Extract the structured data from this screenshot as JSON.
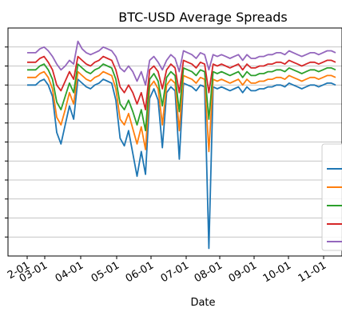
{
  "chart_data": {
    "type": "line",
    "title": "BTC-USD Average Spreads",
    "xlabel": "Date",
    "ylabel": "",
    "x_tick_labels": [
      "2-01",
      "03-01",
      "04-01",
      "05-01",
      "06-01",
      "07-01",
      "08-01",
      "09-01",
      "10-01",
      "11-01"
    ],
    "grid": "horizontal",
    "legend_location": "right",
    "series": [
      {
        "color": "#1f77b4",
        "baseline": 5.0,
        "values": [
          5.0,
          5.0,
          5.0,
          5.2,
          5.3,
          5.0,
          4.4,
          2.5,
          1.9,
          2.9,
          3.9,
          3.2,
          5.3,
          5.1,
          4.9,
          4.8,
          5.0,
          5.1,
          5.3,
          5.2,
          5.1,
          4.2,
          2.2,
          1.8,
          2.6,
          1.4,
          0.2,
          1.5,
          0.3,
          4.3,
          4.8,
          4.2,
          1.7,
          4.6,
          4.9,
          4.7,
          1.1,
          5.1,
          5.0,
          4.9,
          4.7,
          5.0,
          4.9,
          -3.6,
          4.9,
          4.8,
          4.9,
          4.8,
          4.7,
          4.8,
          4.9,
          4.6,
          4.9,
          4.7,
          4.7,
          4.8,
          4.8,
          4.9,
          4.9,
          5.0,
          5.0,
          4.9,
          5.1,
          5.0,
          4.9,
          4.8,
          4.9,
          5.0,
          5.0,
          4.9,
          5.0,
          5.1,
          5.1,
          5.0
        ]
      },
      {
        "color": "#ff7f0e",
        "baseline": 5.4,
        "values": [
          5.4,
          5.4,
          5.4,
          5.6,
          5.7,
          5.4,
          4.8,
          3.3,
          2.9,
          3.7,
          4.6,
          4.0,
          5.7,
          5.5,
          5.3,
          5.2,
          5.4,
          5.5,
          5.7,
          5.6,
          5.5,
          4.8,
          3.2,
          2.9,
          3.5,
          2.7,
          1.9,
          2.8,
          1.6,
          4.9,
          5.2,
          4.8,
          2.9,
          5.0,
          5.3,
          5.1,
          2.6,
          5.5,
          5.4,
          5.3,
          5.1,
          5.4,
          5.3,
          1.5,
          5.3,
          5.2,
          5.3,
          5.2,
          5.1,
          5.2,
          5.3,
          5.0,
          5.3,
          5.1,
          5.1,
          5.2,
          5.2,
          5.3,
          5.3,
          5.4,
          5.4,
          5.3,
          5.5,
          5.4,
          5.3,
          5.2,
          5.3,
          5.4,
          5.4,
          5.3,
          5.4,
          5.5,
          5.5,
          5.4
        ]
      },
      {
        "color": "#2ca02c",
        "baseline": 5.8,
        "values": [
          5.8,
          5.8,
          5.8,
          6.0,
          6.1,
          5.8,
          5.3,
          4.1,
          3.7,
          4.4,
          5.1,
          4.6,
          6.1,
          5.9,
          5.7,
          5.6,
          5.8,
          5.9,
          6.1,
          6.0,
          5.9,
          5.3,
          4.0,
          3.7,
          4.2,
          3.6,
          2.9,
          3.7,
          2.6,
          5.3,
          5.6,
          5.2,
          3.9,
          5.4,
          5.7,
          5.5,
          3.6,
          5.9,
          5.8,
          5.7,
          5.5,
          5.8,
          5.7,
          3.2,
          5.7,
          5.6,
          5.7,
          5.6,
          5.5,
          5.6,
          5.7,
          5.4,
          5.7,
          5.5,
          5.5,
          5.6,
          5.6,
          5.7,
          5.7,
          5.8,
          5.8,
          5.7,
          5.9,
          5.8,
          5.7,
          5.6,
          5.7,
          5.8,
          5.8,
          5.7,
          5.8,
          5.9,
          5.9,
          5.8
        ]
      },
      {
        "color": "#d62728",
        "baseline": 6.2,
        "values": [
          6.2,
          6.2,
          6.2,
          6.4,
          6.5,
          6.2,
          5.8,
          5.0,
          4.7,
          5.2,
          5.7,
          5.3,
          6.5,
          6.3,
          6.1,
          6.0,
          6.2,
          6.3,
          6.5,
          6.4,
          6.3,
          5.8,
          4.9,
          4.6,
          5.0,
          4.6,
          4.0,
          4.6,
          3.7,
          5.8,
          6.0,
          5.7,
          4.8,
          5.8,
          6.1,
          5.9,
          4.6,
          6.3,
          6.2,
          6.1,
          5.9,
          6.2,
          6.1,
          4.6,
          6.1,
          6.0,
          6.1,
          6.0,
          5.9,
          6.0,
          6.1,
          5.8,
          6.1,
          5.9,
          5.9,
          6.0,
          6.0,
          6.1,
          6.1,
          6.2,
          6.2,
          6.1,
          6.3,
          6.2,
          6.1,
          6.0,
          6.1,
          6.2,
          6.2,
          6.1,
          6.2,
          6.3,
          6.3,
          6.2
        ]
      },
      {
        "color": "#9467bd",
        "baseline": 6.7,
        "values": [
          6.7,
          6.7,
          6.7,
          6.9,
          7.0,
          6.8,
          6.5,
          6.1,
          5.8,
          6.0,
          6.3,
          6.1,
          7.3,
          6.9,
          6.7,
          6.6,
          6.7,
          6.8,
          7.0,
          6.9,
          6.8,
          6.5,
          5.9,
          5.7,
          6.0,
          5.7,
          5.2,
          5.7,
          5.0,
          6.3,
          6.5,
          6.2,
          5.8,
          6.3,
          6.6,
          6.4,
          5.7,
          6.8,
          6.7,
          6.6,
          6.4,
          6.7,
          6.6,
          5.8,
          6.6,
          6.5,
          6.6,
          6.5,
          6.4,
          6.5,
          6.6,
          6.3,
          6.6,
          6.4,
          6.4,
          6.5,
          6.5,
          6.6,
          6.6,
          6.7,
          6.7,
          6.6,
          6.8,
          6.7,
          6.6,
          6.5,
          6.6,
          6.7,
          6.7,
          6.6,
          6.7,
          6.8,
          6.8,
          6.7
        ]
      }
    ]
  }
}
